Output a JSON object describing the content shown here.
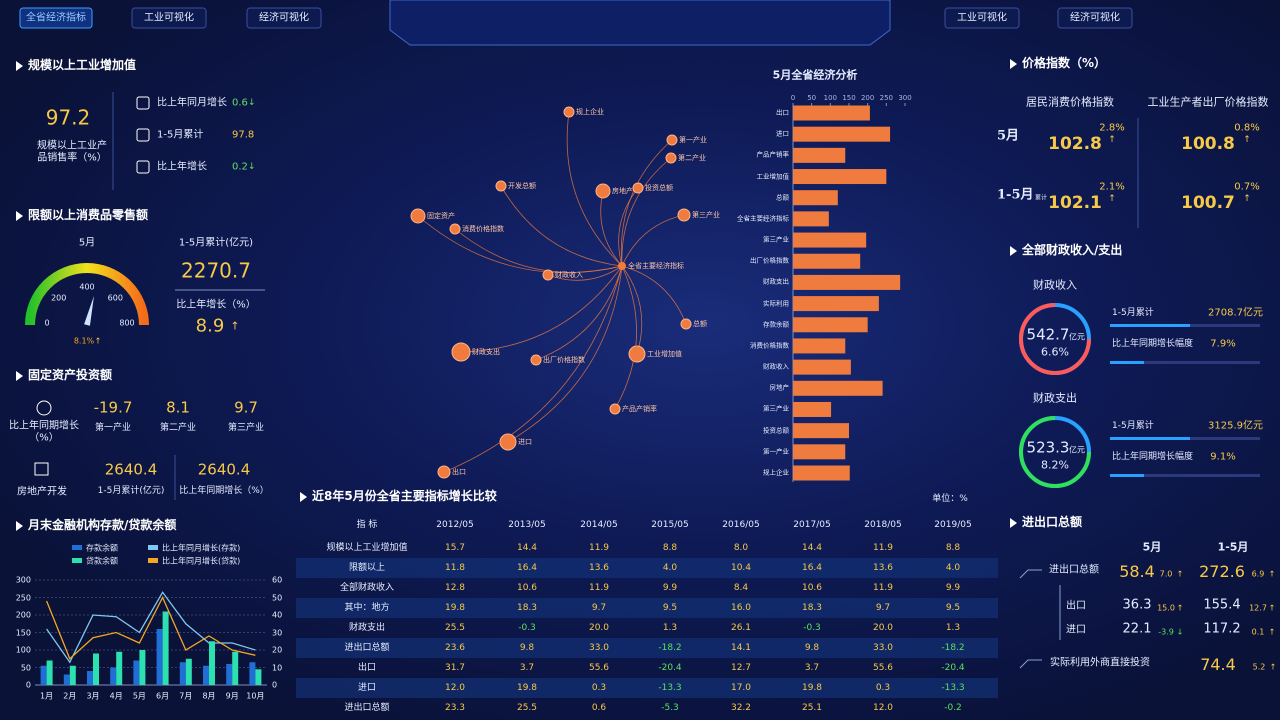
{
  "nav": [
    "全省经济指标",
    "工业可视化",
    "经济可视化",
    "工业可视化",
    "经济可视化"
  ],
  "industry": {
    "title": "规模以上工业增加值",
    "value": "97.2",
    "label": "规模以上工业产品销售率（%）",
    "items": [
      {
        "label": "比上年同月增长",
        "value": "0.6",
        "arrow": "↓"
      },
      {
        "label": "1-5月累计",
        "value": "97.8"
      },
      {
        "label": "比上年增长",
        "value": "0.2",
        "arrow": "↓"
      }
    ]
  },
  "retail": {
    "title": "限额以上消费品零售额",
    "month": "5月",
    "gauge": {
      "type": "gauge",
      "value": 460,
      "min": 0,
      "max": 800,
      "ticks": [
        0,
        200,
        400,
        600,
        800
      ],
      "label": "8.1%",
      "arrow": "↑"
    },
    "cum_label": "1-5月累计(亿元)",
    "cum": "2270.7",
    "growth_label": "比上年增长（%）",
    "growth": "8.9",
    "growth_arrow": "↑"
  },
  "fixed": {
    "title": "固定资产投资额",
    "row_label": "比上年同期增长（%）",
    "items": [
      {
        "value": "-19.7",
        "label": "第一产业"
      },
      {
        "value": "8.1",
        "label": "第二产业"
      },
      {
        "value": "9.7",
        "label": "第三产业"
      }
    ],
    "estate_label": "房地产开发",
    "estate": [
      {
        "value": "2640.4",
        "label": "1-5月累计(亿元)"
      },
      {
        "value": "2640.4",
        "label": "比上年同期增长（%）"
      }
    ]
  },
  "finance": {
    "type": "bar",
    "title": "月末金融机构存款/贷款余额",
    "categories": [
      "1月",
      "2月",
      "3月",
      "4月",
      "5月",
      "6月",
      "7月",
      "8月",
      "9月",
      "10月"
    ],
    "series": [
      {
        "name": "存款余额",
        "color": "#1f6fd6",
        "values": [
          55,
          30,
          40,
          50,
          70,
          160,
          65,
          55,
          60,
          65
        ]
      },
      {
        "name": "比上年同月增长(存款)",
        "color": "#7ec8f0",
        "axis": "y2",
        "values": [
          32,
          13,
          40,
          39,
          30,
          53,
          35,
          24,
          24,
          20
        ]
      },
      {
        "name": "贷款余额",
        "color": "#2de0b0",
        "values": [
          70,
          55,
          90,
          95,
          100,
          210,
          75,
          125,
          95,
          45
        ]
      },
      {
        "name": "比上年同月增长(贷款)",
        "color": "#f5a623",
        "axis": "y2",
        "values": [
          48,
          15,
          27,
          30,
          24,
          50,
          20,
          28,
          20,
          17
        ]
      }
    ],
    "ylim": [
      0,
      300
    ],
    "yticks": [
      0,
      50,
      100,
      150,
      200,
      250,
      300
    ],
    "y2lim": [
      0,
      60
    ],
    "y2ticks": [
      0,
      10,
      20,
      30,
      40,
      50,
      60
    ],
    "grid": true
  },
  "network": {
    "center": "全省主要经济指标",
    "nodes": [
      "规上企业",
      "第一产业",
      "第二产业",
      "投资总额",
      "房地产",
      "开发总额",
      "第三产业",
      "固定资产",
      "消费价格指数",
      "财政收入",
      "总额",
      "出厂价格指数",
      "财政支出",
      "工业增加值",
      "产品产销率",
      "进口",
      "出口"
    ]
  },
  "analysis": {
    "type": "bar",
    "orientation": "horizontal",
    "title": "5月全省经济分析",
    "color": "#f07b3f",
    "categories": [
      "出口",
      "进口",
      "产品产销率",
      "工业增加值",
      "总额",
      "全省主要经济指标",
      "第三产业",
      "出厂价格指数",
      "财政支出",
      "实际利用",
      "存款余额",
      "消费价格指数",
      "财政收入",
      "房地产",
      "第三产业",
      "投资总额",
      "第一产业",
      "规上企业"
    ],
    "values": [
      206,
      260,
      140,
      250,
      120,
      96,
      196,
      180,
      287,
      230,
      200,
      140,
      155,
      240,
      102,
      150,
      140,
      152
    ],
    "xlim": [
      0,
      300
    ],
    "xticks": [
      0,
      50,
      100,
      150,
      200,
      250,
      300
    ]
  },
  "table": {
    "title": "近8年5月份全省主要指标增长比较",
    "unit": "单位：%",
    "header": [
      "指 标",
      "2012/05",
      "2013/05",
      "2014/05",
      "2015/05",
      "2016/05",
      "2017/05",
      "2018/05",
      "2019/05"
    ],
    "rows": [
      [
        "规模以上工业增加值",
        "15.7",
        "14.4",
        "11.9",
        "8.8",
        "8.0",
        "14.4",
        "11.9",
        "8.8"
      ],
      [
        "限额以上",
        "11.8",
        "16.4",
        "13.6",
        "4.0",
        "10.4",
        "16.4",
        "13.6",
        "4.0"
      ],
      [
        "全部财政收入",
        "12.8",
        "10.6",
        "11.9",
        "9.9",
        "8.4",
        "10.6",
        "11.9",
        "9.9"
      ],
      [
        "其中：地方",
        "19.8",
        "18.3",
        "9.7",
        "9.5",
        "16.0",
        "18.3",
        "9.7",
        "9.5"
      ],
      [
        "财政支出",
        "25.5",
        "-0.3",
        "20.0",
        "1.3",
        "26.1",
        "-0.3",
        "20.0",
        "1.3"
      ],
      [
        "进出口总额",
        "23.6",
        "9.8",
        "33.0",
        "-18.2",
        "14.1",
        "9.8",
        "33.0",
        "-18.2"
      ],
      [
        "出口",
        "31.7",
        "3.7",
        "55.6",
        "-20.4",
        "12.7",
        "3.7",
        "55.6",
        "-20.4"
      ],
      [
        "进口",
        "12.0",
        "19.8",
        "0.3",
        "-13.3",
        "17.0",
        "19.8",
        "0.3",
        "-13.3"
      ],
      [
        "进出口总额",
        "23.3",
        "25.5",
        "0.6",
        "-5.3",
        "32.2",
        "25.1",
        "12.0",
        "-0.2"
      ]
    ]
  },
  "price": {
    "title": "价格指数（%）",
    "columns": [
      "居民消费价格指数",
      "工业生产者出厂价格指数"
    ],
    "rows": [
      {
        "label": "5月",
        "values": [
          {
            "value": "102.8",
            "change": "2.8%",
            "arrow": "↑"
          },
          {
            "value": "100.8",
            "change": "0.8%",
            "arrow": "↑"
          }
        ]
      },
      {
        "label": "1-5月",
        "sub": "累计",
        "values": [
          {
            "value": "102.1",
            "change": "2.1%",
            "arrow": "↑"
          },
          {
            "value": "100.7",
            "change": "0.7%",
            "arrow": "↑"
          }
        ]
      }
    ]
  },
  "fiscal": {
    "title": "全部财政收入/支出",
    "items": [
      {
        "name": "财政收入",
        "value": "542.7",
        "unit": "亿元",
        "pct": "6.6%",
        "cum_label": "1-5月累计",
        "cum": "2708.7亿元",
        "growth_label": "比上年同期增长幅度",
        "growth": "7.9%"
      },
      {
        "name": "财政支出",
        "value": "523.3",
        "unit": "亿元",
        "pct": "8.2%",
        "cum_label": "1-5月累计",
        "cum": "3125.9亿元",
        "growth_label": "比上年同期增长幅度",
        "growth": "9.1%"
      }
    ]
  },
  "trade": {
    "title": "进出口总额",
    "columns": [
      "5月",
      "1-5月"
    ],
    "rows": [
      {
        "label": "进出口总额",
        "values": [
          {
            "value": "58.4",
            "change": "7.0",
            "arrow": "↑"
          },
          {
            "value": "272.6",
            "change": "6.9",
            "arrow": "↑"
          }
        ]
      },
      {
        "label": "出口",
        "values": [
          {
            "value": "36.3",
            "change": "15.0",
            "arrow": "↑"
          },
          {
            "value": "155.4",
            "change": "12.7",
            "arrow": "↑"
          }
        ]
      },
      {
        "label": "进口",
        "values": [
          {
            "value": "22.1",
            "change": "-3.9",
            "arrow": "↓"
          },
          {
            "value": "117.2",
            "change": "0.1",
            "arrow": "↑"
          }
        ]
      },
      {
        "label": "实际利用外商直接投资",
        "values": [
          {
            "value": "74.4",
            "change": "5.2",
            "arrow": "↑"
          }
        ]
      }
    ]
  }
}
